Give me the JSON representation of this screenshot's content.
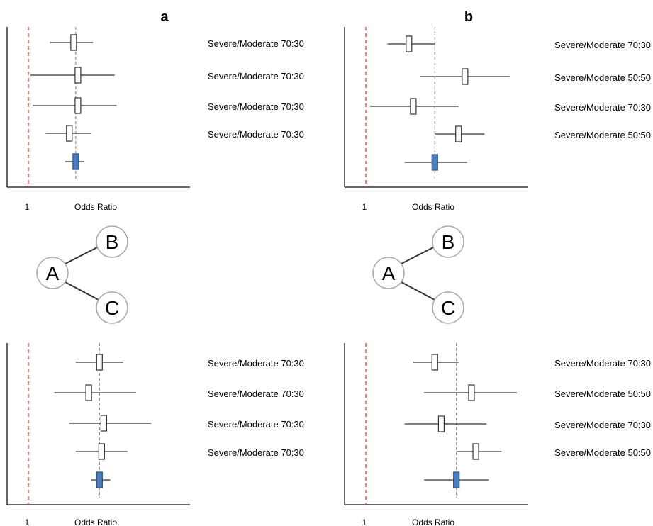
{
  "figure": {
    "panel_labels": [
      "a",
      "b"
    ],
    "x_tick_label": "1",
    "x_axis_title": "Odds Ratio",
    "network_nodes": [
      "A",
      "B",
      "C"
    ],
    "colors": {
      "reference_line": "#e8392b",
      "pooled_box": "#4a7ebf",
      "study_box": "#ffffff",
      "line": "#333333",
      "node_fill": "#ffffff",
      "node_stroke": "#aaaaaa"
    }
  },
  "chart_data": [
    {
      "type": "forest",
      "panel": "a",
      "position": "top",
      "xlabel": "Odds Ratio",
      "x_ticks": [
        "1"
      ],
      "reference_value": 1,
      "pooled_estimate_dashed_line": 3.2,
      "studies": [
        {
          "label": "Severe/Moderate 70:30",
          "estimate": 3.1,
          "ci": [
            2.0,
            4.0
          ]
        },
        {
          "label": "Severe/Moderate 70:30",
          "estimate": 3.3,
          "ci": [
            1.1,
            5.0
          ]
        },
        {
          "label": "Severe/Moderate 70:30",
          "estimate": 3.3,
          "ci": [
            1.2,
            5.1
          ]
        },
        {
          "label": "Severe/Moderate 70:30",
          "estimate": 2.9,
          "ci": [
            1.8,
            3.9
          ]
        }
      ],
      "pooled": {
        "estimate": 3.2,
        "ci": [
          2.7,
          3.6
        ]
      }
    },
    {
      "type": "forest",
      "panel": "b",
      "position": "top",
      "xlabel": "Odds Ratio",
      "x_ticks": [
        "1"
      ],
      "reference_value": 1,
      "pooled_estimate_dashed_line": 4.2,
      "studies": [
        {
          "label": "Severe/Moderate 70:30",
          "estimate": 3.0,
          "ci": [
            2.0,
            4.2
          ]
        },
        {
          "label": "Severe/Moderate 50:50",
          "estimate": 5.6,
          "ci": [
            3.5,
            7.7
          ]
        },
        {
          "label": "Severe/Moderate 70:30",
          "estimate": 3.2,
          "ci": [
            1.2,
            5.3
          ]
        },
        {
          "label": "Severe/Moderate 50:50",
          "estimate": 5.3,
          "ci": [
            4.2,
            6.5
          ]
        }
      ],
      "pooled": {
        "estimate": 4.2,
        "ci": [
          2.8,
          5.7
        ]
      }
    },
    {
      "type": "forest",
      "panel": "a",
      "position": "bottom",
      "xlabel": "Odds Ratio",
      "x_ticks": [
        "1"
      ],
      "reference_value": 1,
      "pooled_estimate_dashed_line": 4.3,
      "studies": [
        {
          "label": "Severe/Moderate 70:30",
          "estimate": 4.3,
          "ci": [
            3.2,
            5.4
          ]
        },
        {
          "label": "Severe/Moderate 70:30",
          "estimate": 3.8,
          "ci": [
            2.2,
            6.0
          ]
        },
        {
          "label": "Severe/Moderate 70:30",
          "estimate": 4.5,
          "ci": [
            2.9,
            6.7
          ]
        },
        {
          "label": "Severe/Moderate 70:30",
          "estimate": 4.4,
          "ci": [
            3.2,
            5.6
          ]
        }
      ],
      "pooled": {
        "estimate": 4.3,
        "ci": [
          3.9,
          4.8
        ]
      }
    },
    {
      "type": "forest",
      "panel": "b",
      "position": "bottom",
      "xlabel": "Odds Ratio",
      "x_ticks": [
        "1"
      ],
      "reference_value": 1,
      "pooled_estimate_dashed_line": 5.2,
      "studies": [
        {
          "label": "Severe/Moderate 70:30",
          "estimate": 4.2,
          "ci": [
            3.2,
            5.3
          ]
        },
        {
          "label": "Severe/Moderate 50:50",
          "estimate": 5.9,
          "ci": [
            3.7,
            8.0
          ]
        },
        {
          "label": "Severe/Moderate 70:30",
          "estimate": 4.5,
          "ci": [
            2.8,
            6.6
          ]
        },
        {
          "label": "Severe/Moderate 50:50",
          "estimate": 6.1,
          "ci": [
            5.2,
            7.3
          ]
        }
      ],
      "pooled": {
        "estimate": 5.2,
        "ci": [
          3.7,
          6.7
        ]
      }
    }
  ]
}
